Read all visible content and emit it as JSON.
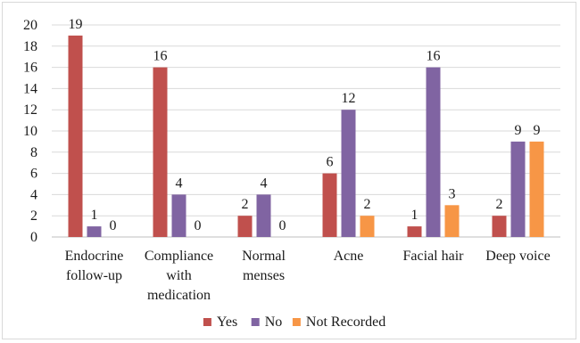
{
  "chart_data": {
    "type": "bar",
    "title": "",
    "xlabel": "",
    "ylabel": "",
    "ylim": [
      0,
      20
    ],
    "yticks": [
      0,
      2,
      4,
      6,
      8,
      10,
      12,
      14,
      16,
      18,
      20
    ],
    "grid": true,
    "legend_position": "bottom",
    "categories": [
      [
        "Endocrine",
        "follow-up"
      ],
      [
        "Compliance",
        "with",
        "medication"
      ],
      [
        "Normal",
        "menses"
      ],
      [
        "Acne"
      ],
      [
        "Facial hair"
      ],
      [
        "Deep voice"
      ]
    ],
    "series": [
      {
        "name": "Yes",
        "color": "#c0504d",
        "values": [
          19,
          16,
          2,
          6,
          1,
          2
        ]
      },
      {
        "name": "No",
        "color": "#8064a2",
        "values": [
          1,
          4,
          4,
          12,
          16,
          9
        ]
      },
      {
        "name": "Not Recorded",
        "color": "#f79646",
        "values": [
          0,
          0,
          0,
          2,
          3,
          9
        ]
      }
    ]
  }
}
